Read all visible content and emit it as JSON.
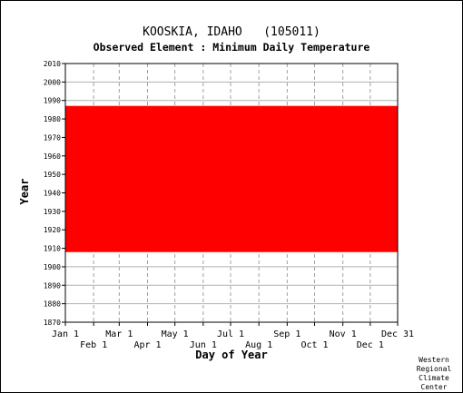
{
  "chart_data": {
    "type": "heatmap",
    "title": "KOOSKIA, IDAHO   (105011)",
    "subtitle": "Observed Element : Minimum Daily Temperature",
    "xlabel": "Day of Year",
    "ylabel": "Year",
    "ylim": [
      1870,
      2010
    ],
    "xlim": [
      1,
      365
    ],
    "y_ticks": [
      1870,
      1880,
      1890,
      1900,
      1910,
      1920,
      1930,
      1940,
      1950,
      1960,
      1970,
      1980,
      1990,
      2000,
      2010
    ],
    "x_ticks_top": [
      {
        "label": "Jan 1",
        "day": 1
      },
      {
        "label": "Mar 1",
        "day": 60
      },
      {
        "label": "May 1",
        "day": 121
      },
      {
        "label": "Jul 1",
        "day": 182
      },
      {
        "label": "Sep 1",
        "day": 244
      },
      {
        "label": "Nov 1",
        "day": 305
      },
      {
        "label": "Dec 31",
        "day": 365
      }
    ],
    "x_ticks_bottom": [
      {
        "label": "Feb 1",
        "day": 32
      },
      {
        "label": "Apr 1",
        "day": 91
      },
      {
        "label": "Jun 1",
        "day": 152
      },
      {
        "label": "Aug 1",
        "day": 213
      },
      {
        "label": "Oct 1",
        "day": 274
      },
      {
        "label": "Dec 1",
        "day": 335
      }
    ],
    "grid": true,
    "data_color": "#ff0000",
    "record_start_year": 1908,
    "record_end_year": 1987,
    "description_note": null
  },
  "credit": [
    "Western",
    "Regional",
    "Climate",
    "Center"
  ]
}
